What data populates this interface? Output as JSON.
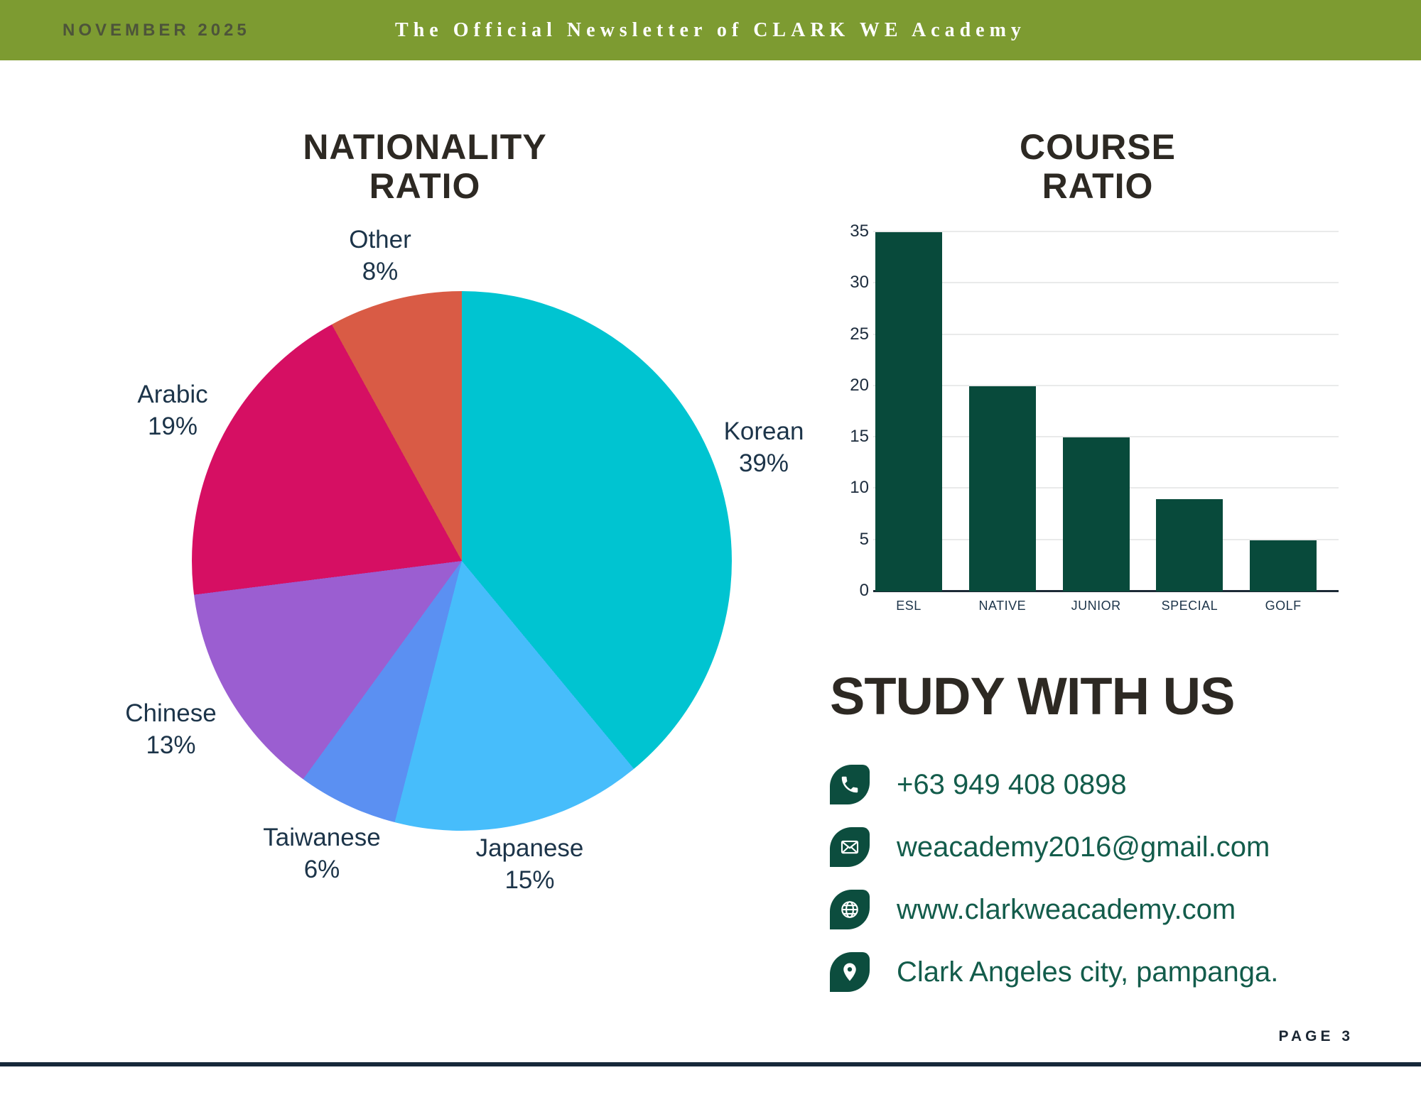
{
  "header": {
    "date": "NOVEMBER 2025",
    "title": "The Official Newsletter of CLARK WE Academy",
    "background_color": "#7d9b31"
  },
  "chart_data": [
    {
      "type": "pie",
      "title": "NATIONALITY RATIO",
      "title_line1": "NATIONALITY",
      "title_line2": "RATIO",
      "legend_position": "outside-labels",
      "slices": [
        {
          "name": "Korean",
          "value": 39,
          "pct_label": "39%",
          "color": "#00c4d1"
        },
        {
          "name": "Japanese",
          "value": 15,
          "pct_label": "15%",
          "color": "#47bdfb"
        },
        {
          "name": "Taiwanese",
          "value": 6,
          "pct_label": "6%",
          "color": "#5b90f2"
        },
        {
          "name": "Chinese",
          "value": 13,
          "pct_label": "13%",
          "color": "#9b5ed1"
        },
        {
          "name": "Arabic",
          "value": 19,
          "pct_label": "19%",
          "color": "#d60f63"
        },
        {
          "name": "Other",
          "value": 8,
          "pct_label": "8%",
          "color": "#d95b45"
        }
      ]
    },
    {
      "type": "bar",
      "title": "COURSE RATIO",
      "title_line1": "COURSE",
      "title_line2": "RATIO",
      "categories": [
        "ESL",
        "NATIVE",
        "JUNIOR",
        "SPECIAL",
        "GOLF"
      ],
      "values": [
        35,
        20,
        15,
        9,
        5
      ],
      "ylim": [
        0,
        35
      ],
      "yticks": [
        0,
        5,
        10,
        15,
        20,
        25,
        30,
        35
      ],
      "bar_color": "#084a3b",
      "grid": true,
      "xlabel": "",
      "ylabel": ""
    }
  ],
  "study": {
    "heading": "STUDY WITH US",
    "contacts": [
      {
        "icon": "phone-icon",
        "text": "+63 949 408 0898"
      },
      {
        "icon": "email-icon",
        "text": "weacademy2016@gmail.com"
      },
      {
        "icon": "globe-icon",
        "text": "www.clarkweacademy.com"
      },
      {
        "icon": "location-icon",
        "text": "Clark Angeles city, pampanga."
      }
    ],
    "icon_color": "#0c4d3e",
    "text_color": "#135c4b"
  },
  "footer": {
    "page_label": "PAGE 3",
    "line_color": "#16283a"
  }
}
